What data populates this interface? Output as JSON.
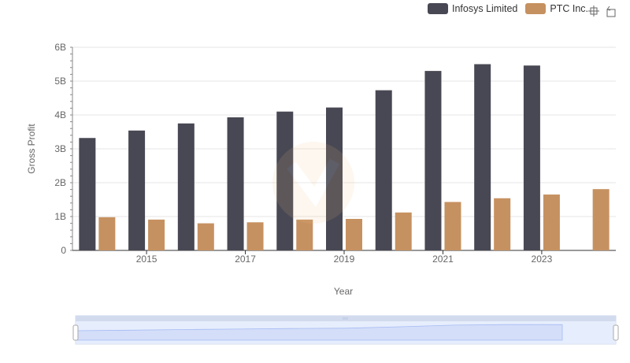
{
  "legend": {
    "items": [
      {
        "label": "Infosys Limited",
        "color": "#484854"
      },
      {
        "label": "PTC Inc.",
        "color": "#c69160"
      }
    ]
  },
  "toolbox": {
    "icons": [
      "zoom-icon",
      "restore-icon"
    ]
  },
  "chart_data": {
    "type": "bar",
    "xlabel": "Year",
    "ylabel": "Gross Profit",
    "ylim": [
      0,
      6000000000
    ],
    "y_ticks": [
      "0",
      "1B",
      "2B",
      "3B",
      "4B",
      "5B",
      "6B"
    ],
    "x_tick_labels": [
      "2015",
      "2017",
      "2019",
      "2021",
      "2023"
    ],
    "categories": [
      "2014",
      "2015",
      "2016",
      "2017",
      "2018",
      "2019",
      "2020",
      "2021",
      "2022",
      "2023",
      "2024"
    ],
    "series": [
      {
        "name": "Infosys Limited",
        "color": "#484854",
        "values": [
          3320000000,
          3540000000,
          3750000000,
          3930000000,
          4100000000,
          4220000000,
          4730000000,
          5300000000,
          5500000000,
          5460000000,
          null
        ]
      },
      {
        "name": "PTC Inc.",
        "color": "#c69160",
        "values": [
          980000000,
          910000000,
          800000000,
          830000000,
          910000000,
          930000000,
          1120000000,
          1430000000,
          1540000000,
          1650000000,
          1810000000
        ]
      }
    ],
    "grid": true,
    "data_zoom": true
  }
}
